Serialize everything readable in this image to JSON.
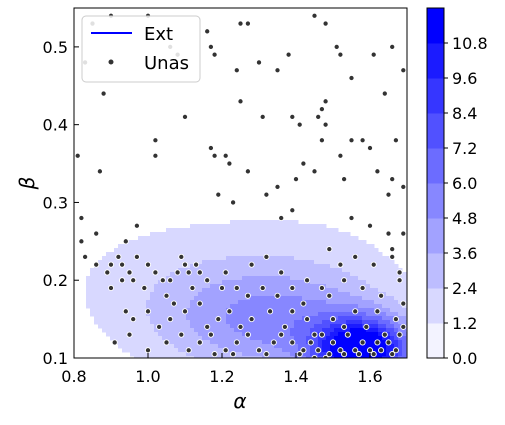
{
  "chart_data": {
    "type": "scatter",
    "title": "",
    "xlabel": "α",
    "ylabel": "β",
    "xlim": [
      0.8,
      1.7
    ],
    "ylim": [
      0.1,
      0.55
    ],
    "xticks": [
      "0.8",
      "1.0",
      "1.2",
      "1.4",
      "1.6"
    ],
    "yticks": [
      "0.1",
      "0.2",
      "0.3",
      "0.4",
      "0.5"
    ],
    "legend": {
      "placement": "top-left",
      "entries": [
        "Ext",
        "Unas"
      ]
    },
    "colorbar": {
      "min": 0.0,
      "max": 11.4,
      "ticks": [
        "0.0",
        "1.2",
        "2.4",
        "3.6",
        "4.8",
        "6.0",
        "7.2",
        "8.4",
        "9.6",
        "10.8"
      ],
      "low_color": "#f3f3ff",
      "high_color": "#0000ff"
    },
    "series": [
      {
        "name": "Ext",
        "kind": "density-contour",
        "color": "#0000ff",
        "peak_level": 11.4,
        "components": [
          {
            "cx": 1.58,
            "cy": 0.11,
            "sx": 0.09,
            "sy": 0.028,
            "w": 1.0
          },
          {
            "cx": 1.36,
            "cy": 0.145,
            "sx": 0.22,
            "sy": 0.05,
            "w": 0.38
          },
          {
            "cx": 1.1,
            "cy": 0.2,
            "sx": 0.3,
            "sy": 0.075,
            "w": 0.13
          },
          {
            "cx": 1.55,
            "cy": 0.27,
            "sx": 0.22,
            "sy": 0.07,
            "w": 0.05
          }
        ]
      },
      {
        "name": "Unas",
        "kind": "scatter",
        "color": "#333333",
        "edge_color": "#ffffff",
        "points": [
          [
            0.81,
            0.36
          ],
          [
            0.83,
            0.48
          ],
          [
            0.85,
            0.53
          ],
          [
            0.9,
            0.54
          ],
          [
            1.0,
            0.54
          ],
          [
            0.88,
            0.44
          ],
          [
            0.87,
            0.34
          ],
          [
            1.06,
            0.5
          ],
          [
            1.08,
            0.49
          ],
          [
            1.16,
            0.52
          ],
          [
            1.25,
            0.53
          ],
          [
            1.27,
            0.53
          ],
          [
            1.45,
            0.54
          ],
          [
            1.48,
            0.53
          ],
          [
            1.17,
            0.5
          ],
          [
            1.18,
            0.49
          ],
          [
            1.24,
            0.47
          ],
          [
            1.3,
            0.48
          ],
          [
            1.35,
            0.47
          ],
          [
            1.38,
            0.49
          ],
          [
            1.51,
            0.5
          ],
          [
            1.52,
            0.49
          ],
          [
            1.61,
            0.49
          ],
          [
            1.66,
            0.5
          ],
          [
            1.69,
            0.47
          ],
          [
            1.64,
            0.44
          ],
          [
            1.55,
            0.46
          ],
          [
            1.25,
            0.43
          ],
          [
            1.31,
            0.41
          ],
          [
            1.39,
            0.41
          ],
          [
            1.41,
            0.4
          ],
          [
            1.46,
            0.41
          ],
          [
            1.48,
            0.43
          ],
          [
            1.48,
            0.4
          ],
          [
            1.47,
            0.38
          ],
          [
            1.47,
            0.42
          ],
          [
            1.1,
            0.41
          ],
          [
            1.02,
            0.38
          ],
          [
            1.02,
            0.36
          ],
          [
            1.17,
            0.37
          ],
          [
            1.18,
            0.36
          ],
          [
            1.21,
            0.36
          ],
          [
            1.22,
            0.35
          ],
          [
            1.19,
            0.31
          ],
          [
            1.23,
            0.3
          ],
          [
            1.27,
            0.34
          ],
          [
            1.32,
            0.31
          ],
          [
            1.35,
            0.32
          ],
          [
            1.4,
            0.33
          ],
          [
            1.42,
            0.35
          ],
          [
            1.45,
            0.34
          ],
          [
            1.52,
            0.36
          ],
          [
            1.53,
            0.33
          ],
          [
            1.55,
            0.38
          ],
          [
            1.58,
            0.38
          ],
          [
            1.6,
            0.37
          ],
          [
            1.62,
            0.34
          ],
          [
            1.66,
            0.33
          ],
          [
            1.65,
            0.31
          ],
          [
            1.67,
            0.38
          ],
          [
            1.69,
            0.32
          ],
          [
            1.39,
            0.29
          ],
          [
            1.36,
            0.28
          ],
          [
            1.55,
            0.28
          ],
          [
            1.6,
            0.27
          ],
          [
            1.65,
            0.26
          ],
          [
            1.69,
            0.26
          ],
          [
            0.82,
            0.28
          ],
          [
            0.86,
            0.26
          ],
          [
            0.97,
            0.27
          ],
          [
            0.94,
            0.25
          ],
          [
            0.82,
            0.25
          ],
          [
            0.83,
            0.23
          ],
          [
            0.86,
            0.22
          ],
          [
            0.9,
            0.22
          ],
          [
            0.92,
            0.23
          ],
          [
            0.93,
            0.22
          ],
          [
            0.97,
            0.23
          ],
          [
            1.0,
            0.22
          ],
          [
            0.9,
            0.19
          ],
          [
            0.89,
            0.21
          ],
          [
            0.93,
            0.2
          ],
          [
            0.95,
            0.21
          ],
          [
            0.96,
            0.2
          ],
          [
            1.02,
            0.21
          ],
          [
            1.04,
            0.2
          ],
          [
            1.06,
            0.2
          ],
          [
            1.08,
            0.21
          ],
          [
            1.09,
            0.23
          ],
          [
            1.1,
            0.22
          ],
          [
            1.11,
            0.21
          ],
          [
            1.13,
            0.22
          ],
          [
            1.14,
            0.21
          ],
          [
            1.16,
            0.2
          ],
          [
            1.21,
            0.21
          ],
          [
            1.28,
            0.22
          ],
          [
            1.32,
            0.23
          ],
          [
            1.36,
            0.21
          ],
          [
            1.43,
            0.2
          ],
          [
            1.49,
            0.24
          ],
          [
            1.52,
            0.22
          ],
          [
            1.56,
            0.23
          ],
          [
            1.61,
            0.22
          ],
          [
            1.66,
            0.23
          ],
          [
            1.66,
            0.24
          ],
          [
            1.68,
            0.21
          ],
          [
            0.99,
            0.19
          ],
          [
            1.05,
            0.18
          ],
          [
            1.07,
            0.17
          ],
          [
            1.12,
            0.19
          ],
          [
            1.14,
            0.17
          ],
          [
            1.2,
            0.19
          ],
          [
            1.24,
            0.19
          ],
          [
            1.27,
            0.18
          ],
          [
            1.31,
            0.19
          ],
          [
            1.35,
            0.18
          ],
          [
            1.39,
            0.19
          ],
          [
            1.42,
            0.17
          ],
          [
            1.47,
            0.19
          ],
          [
            1.49,
            0.18
          ],
          [
            1.53,
            0.2
          ],
          [
            1.58,
            0.19
          ],
          [
            1.63,
            0.18
          ],
          [
            1.68,
            0.2
          ],
          [
            0.94,
            0.16
          ],
          [
            0.96,
            0.15
          ],
          [
            1.0,
            0.16
          ],
          [
            1.03,
            0.14
          ],
          [
            1.06,
            0.15
          ],
          [
            1.1,
            0.16
          ],
          [
            1.16,
            0.14
          ],
          [
            1.19,
            0.15
          ],
          [
            1.22,
            0.16
          ],
          [
            1.25,
            0.14
          ],
          [
            1.28,
            0.15
          ],
          [
            1.33,
            0.16
          ],
          [
            1.37,
            0.14
          ],
          [
            1.39,
            0.16
          ],
          [
            1.43,
            0.15
          ],
          [
            1.45,
            0.13
          ],
          [
            1.5,
            0.15
          ],
          [
            1.53,
            0.14
          ],
          [
            1.56,
            0.16
          ],
          [
            1.59,
            0.14
          ],
          [
            1.62,
            0.16
          ],
          [
            1.64,
            0.13
          ],
          [
            1.67,
            0.15
          ],
          [
            1.69,
            0.17
          ],
          [
            1.69,
            0.14
          ],
          [
            0.91,
            0.12
          ],
          [
            0.95,
            0.13
          ],
          [
            1.0,
            0.11
          ],
          [
            1.05,
            0.12
          ],
          [
            1.09,
            0.13
          ],
          [
            1.11,
            0.11
          ],
          [
            1.14,
            0.12
          ],
          [
            1.17,
            0.13
          ],
          [
            1.21,
            0.11
          ],
          [
            1.24,
            0.12
          ],
          [
            1.27,
            0.13
          ],
          [
            1.3,
            0.11
          ],
          [
            1.34,
            0.12
          ],
          [
            1.36,
            0.13
          ],
          [
            1.39,
            0.12
          ],
          [
            1.42,
            0.11
          ],
          [
            1.44,
            0.12
          ],
          [
            1.46,
            0.11
          ],
          [
            1.47,
            0.13
          ],
          [
            1.48,
            0.1
          ],
          [
            1.5,
            0.12
          ],
          [
            1.52,
            0.11
          ],
          [
            1.54,
            0.13
          ],
          [
            1.56,
            0.11
          ],
          [
            1.58,
            0.12
          ],
          [
            1.6,
            0.11
          ],
          [
            1.62,
            0.12
          ],
          [
            1.63,
            0.11
          ],
          [
            1.65,
            0.12
          ],
          [
            1.67,
            0.11
          ],
          [
            1.68,
            0.13
          ],
          [
            1.18,
            0.105
          ],
          [
            1.23,
            0.105
          ],
          [
            1.32,
            0.105
          ],
          [
            1.41,
            0.105
          ],
          [
            1.45,
            0.1
          ],
          [
            1.49,
            0.105
          ],
          [
            1.53,
            0.105
          ],
          [
            1.57,
            0.105
          ],
          [
            1.61,
            0.105
          ],
          [
            1.66,
            0.105
          ]
        ]
      }
    ]
  }
}
